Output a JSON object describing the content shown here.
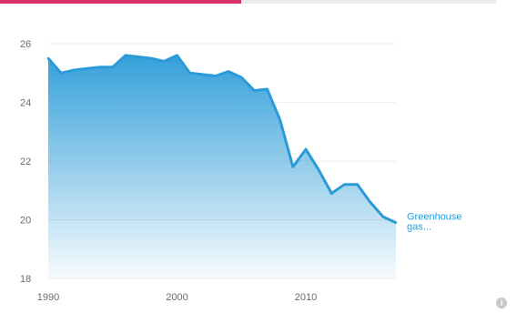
{
  "header": {
    "accent_color": "#d6336c"
  },
  "chart_data": {
    "type": "area",
    "title": "",
    "xlabel": "",
    "ylabel": "",
    "xlim": [
      1990,
      2017
    ],
    "ylim": [
      18,
      26
    ],
    "x_ticks": [
      "1990",
      "2000",
      "2010"
    ],
    "y_ticks": [
      "18",
      "20",
      "22",
      "24",
      "26"
    ],
    "grid": "horizontal",
    "series": [
      {
        "name": "Greenhouse gas...",
        "color": "#2a9bd8",
        "x": [
          1990,
          1991,
          1992,
          1993,
          1994,
          1995,
          1996,
          1997,
          1998,
          1999,
          2000,
          2001,
          2002,
          2003,
          2004,
          2005,
          2006,
          2007,
          2008,
          2009,
          2010,
          2011,
          2012,
          2013,
          2014,
          2015,
          2016,
          2017
        ],
        "y": [
          25.5,
          25.0,
          25.1,
          25.15,
          25.2,
          25.2,
          25.6,
          25.55,
          25.5,
          25.4,
          25.6,
          25.0,
          24.95,
          24.9,
          25.05,
          24.85,
          24.4,
          24.45,
          23.4,
          21.8,
          22.4,
          21.7,
          20.9,
          21.2,
          21.2,
          20.6,
          20.1,
          19.9
        ]
      }
    ]
  },
  "icons": {
    "info": "info-icon"
  }
}
